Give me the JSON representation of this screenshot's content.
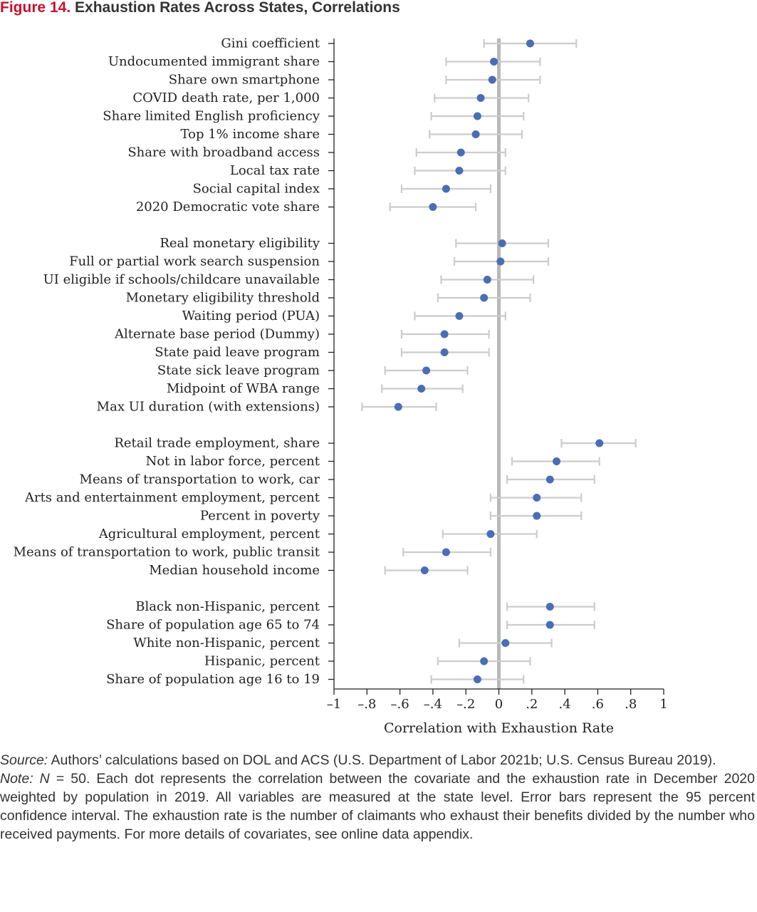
{
  "figure": {
    "number": "Figure 14.",
    "title": "Exhaustion Rates Across States, Correlations"
  },
  "chart_data": {
    "type": "scatter",
    "subtype": "dot-and-whisker",
    "orientation": "horizontal",
    "xlabel": "Correlation with Exhaustion Rate",
    "xlim": [
      -1,
      1
    ],
    "xticks": [
      -1,
      -0.8,
      -0.6,
      -0.4,
      -0.2,
      0,
      0.2,
      0.4,
      0.6,
      0.8,
      1
    ],
    "xtick_labels": [
      "–1",
      "–.8",
      "–.6",
      "–.4",
      "–.2",
      "0",
      ".2",
      ".4",
      ".6",
      ".8",
      "1"
    ],
    "reference_line_x": 0,
    "grid": false,
    "dot_color": "#4a6eb5",
    "errorbar_color": "#cccccc",
    "reference_line_color": "#b8b8b8",
    "groups": [
      {
        "items": [
          {
            "label": "Gini coefficient",
            "r": 0.19,
            "lo": -0.09,
            "hi": 0.47
          },
          {
            "label": "Undocumented immigrant share",
            "r": -0.03,
            "lo": -0.32,
            "hi": 0.25
          },
          {
            "label": "Share own smartphone",
            "r": -0.04,
            "lo": -0.32,
            "hi": 0.25
          },
          {
            "label": "COVID death rate, per 1,000",
            "r": -0.11,
            "lo": -0.39,
            "hi": 0.18
          },
          {
            "label": "Share limited English proficiency ",
            "r": -0.13,
            "lo": -0.41,
            "hi": 0.15
          },
          {
            "label": "Top 1% income share",
            "r": -0.14,
            "lo": -0.42,
            "hi": 0.14
          },
          {
            "label": "Share with broadband access",
            "r": -0.23,
            "lo": -0.5,
            "hi": 0.04
          },
          {
            "label": "Local tax rate",
            "r": -0.24,
            "lo": -0.51,
            "hi": 0.04
          },
          {
            "label": "Social capital index",
            "r": -0.32,
            "lo": -0.59,
            "hi": -0.05
          },
          {
            "label": "2020 Democratic vote share",
            "r": -0.4,
            "lo": -0.66,
            "hi": -0.14
          }
        ]
      },
      {
        "items": [
          {
            "label": "Real monetary eligibility",
            "r": 0.02,
            "lo": -0.26,
            "hi": 0.3
          },
          {
            "label": "Full or partial work search suspension",
            "r": 0.01,
            "lo": -0.27,
            "hi": 0.3
          },
          {
            "label": "UI eligible if schools/childcare unavailable",
            "r": -0.07,
            "lo": -0.35,
            "hi": 0.21
          },
          {
            "label": "Monetary eligibility threshold",
            "r": -0.09,
            "lo": -0.37,
            "hi": 0.19
          },
          {
            "label": "Waiting period (PUA)",
            "r": -0.24,
            "lo": -0.51,
            "hi": 0.04
          },
          {
            "label": "Alternate base period (Dummy)",
            "r": -0.33,
            "lo": -0.59,
            "hi": -0.06
          },
          {
            "label": "State paid leave program",
            "r": -0.33,
            "lo": -0.59,
            "hi": -0.06
          },
          {
            "label": "State sick leave program",
            "r": -0.44,
            "lo": -0.69,
            "hi": -0.19
          },
          {
            "label": "Midpoint of WBA range",
            "r": -0.47,
            "lo": -0.71,
            "hi": -0.22
          },
          {
            "label": "Max UI duration (with extensions)",
            "r": -0.61,
            "lo": -0.83,
            "hi": -0.38
          }
        ]
      },
      {
        "items": [
          {
            "label": "Retail trade employment, share",
            "r": 0.61,
            "lo": 0.38,
            "hi": 0.83
          },
          {
            "label": "Not in labor force, percent",
            "r": 0.35,
            "lo": 0.08,
            "hi": 0.61
          },
          {
            "label": "Means of transportation to work, car",
            "r": 0.31,
            "lo": 0.05,
            "hi": 0.58
          },
          {
            "label": "Arts and entertainment employment, percent",
            "r": 0.23,
            "lo": -0.05,
            "hi": 0.5
          },
          {
            "label": "Percent in poverty",
            "r": 0.23,
            "lo": -0.05,
            "hi": 0.5
          },
          {
            "label": "Agricultural employment, percent",
            "r": -0.05,
            "lo": -0.34,
            "hi": 0.23
          },
          {
            "label": "Means of transportation to work, public transit",
            "r": -0.32,
            "lo": -0.58,
            "hi": -0.05
          },
          {
            "label": "Median household income",
            "r": -0.45,
            "lo": -0.69,
            "hi": -0.19
          }
        ]
      },
      {
        "items": [
          {
            "label": "Black non-Hispanic, percent",
            "r": 0.31,
            "lo": 0.05,
            "hi": 0.58
          },
          {
            "label": "Share of population age 65 to 74",
            "r": 0.31,
            "lo": 0.05,
            "hi": 0.58
          },
          {
            "label": "White non-Hispanic, percent",
            "r": 0.04,
            "lo": -0.24,
            "hi": 0.32
          },
          {
            "label": "Hispanic, percent",
            "r": -0.09,
            "lo": -0.37,
            "hi": 0.19
          },
          {
            "label": "Share of population age 16 to 19",
            "r": -0.13,
            "lo": -0.41,
            "hi": 0.15
          }
        ]
      }
    ]
  },
  "notes": {
    "source_label": "Source:",
    "source_text": " Authors’ calculations based on DOL and ACS (U.S. Department of Labor 2021b; U.S. Census Bureau 2019).",
    "note_label": "Note:",
    "note_n_symbol": "N",
    "note_text": " = 50. Each dot represents the correlation between the covariate and the exhaustion rate in December 2020 weighted by population in 2019. All variables are measured at the state level. Error bars represent the 95 percent confidence interval. The exhaustion rate is the number of claimants who exhaust their benefits divided by the number who received payments. For more details of covariates, see online data appendix."
  }
}
